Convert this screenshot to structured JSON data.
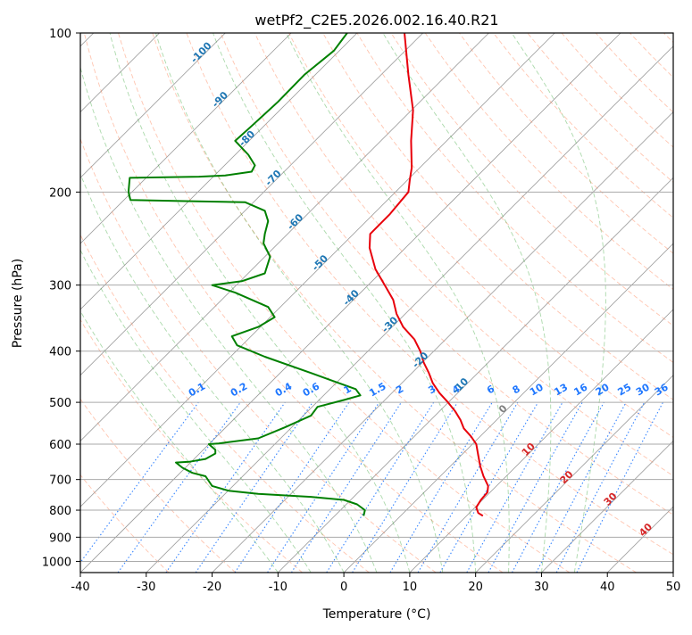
{
  "chart_data": {
    "type": "line",
    "title": "wetPf2_C2E5.2026.002.16.40.R21",
    "xlabel": "Temperature (°C)",
    "ylabel": "Pressure (hPa)",
    "xlim": [
      -40,
      50
    ],
    "ylim": [
      1050,
      100
    ],
    "y_scale": "log",
    "x_ticks": [
      -40,
      -30,
      -20,
      -10,
      0,
      10,
      20,
      30,
      40,
      50
    ],
    "y_ticks": [
      100,
      200,
      300,
      400,
      500,
      600,
      700,
      800,
      900,
      1000
    ],
    "grid": true,
    "legend": "none",
    "colors": {
      "temperature": "#e8000b",
      "dewpoint": "#008000",
      "dry_adiabat": "#ff7f50",
      "moist_adiabat": "#2ca02c",
      "mixing_ratio": "#1f77ff",
      "label_blue": "#1f77b4",
      "label_red": "#d62728"
    },
    "series": [
      {
        "points": [
          [
            9.2,
            100
          ],
          [
            9.8,
            120
          ],
          [
            10.5,
            140
          ],
          [
            10.2,
            160
          ],
          [
            10.3,
            180
          ],
          [
            10.0,
            190
          ],
          [
            9.8,
            200
          ],
          [
            7.0,
            220
          ],
          [
            4.0,
            240
          ],
          [
            3.9,
            255
          ],
          [
            4.8,
            280
          ],
          [
            6.2,
            300
          ],
          [
            7.5,
            320
          ],
          [
            8.0,
            340
          ],
          [
            9.0,
            360
          ],
          [
            10.7,
            380
          ],
          [
            11.6,
            400
          ],
          [
            12.1,
            420
          ],
          [
            12.9,
            440
          ],
          [
            13.5,
            460
          ],
          [
            14.5,
            480
          ],
          [
            15.8,
            500
          ],
          [
            16.9,
            520
          ],
          [
            17.7,
            540
          ],
          [
            18.2,
            560
          ],
          [
            19.3,
            580
          ],
          [
            20.1,
            600
          ],
          [
            20.4,
            630
          ],
          [
            20.7,
            660
          ],
          [
            21.2,
            690
          ],
          [
            21.9,
            720
          ],
          [
            21.8,
            740
          ],
          [
            20.8,
            765
          ],
          [
            20.1,
            790
          ],
          [
            20.4,
            810
          ],
          [
            21.1,
            820
          ]
        ]
      },
      {
        "points": [
          [
            0.5,
            100
          ],
          [
            -1.5,
            108
          ],
          [
            -6.0,
            120
          ],
          [
            -10.0,
            135
          ],
          [
            -14.0,
            150
          ],
          [
            -16.5,
            160
          ],
          [
            -14.5,
            170
          ],
          [
            -13.5,
            178
          ],
          [
            -14.0,
            183
          ],
          [
            -18.0,
            186
          ],
          [
            -22.0,
            187
          ],
          [
            -32.5,
            188
          ],
          [
            -32.7,
            200
          ],
          [
            -32.4,
            207
          ],
          [
            -25.0,
            208
          ],
          [
            -15.0,
            209
          ],
          [
            -12.0,
            217
          ],
          [
            -11.5,
            227
          ],
          [
            -12.0,
            240
          ],
          [
            -12.2,
            250
          ],
          [
            -11.2,
            265
          ],
          [
            -12.0,
            285
          ],
          [
            -15.5,
            295
          ],
          [
            -20.0,
            300
          ],
          [
            -16.5,
            310
          ],
          [
            -11.5,
            330
          ],
          [
            -10.5,
            345
          ],
          [
            -13.0,
            360
          ],
          [
            -17.0,
            375
          ],
          [
            -16.2,
            390
          ],
          [
            -12.0,
            410
          ],
          [
            -5.0,
            440
          ],
          [
            1.8,
            472
          ],
          [
            2.5,
            485
          ],
          [
            0,
            495
          ],
          [
            -4.0,
            510
          ],
          [
            -5.0,
            530
          ],
          [
            -9.0,
            558
          ],
          [
            -13.0,
            585
          ],
          [
            -19.0,
            598
          ],
          [
            -20.5,
            600
          ],
          [
            -19.5,
            615
          ],
          [
            -19.5,
            625
          ],
          [
            -21.0,
            640
          ],
          [
            -23.5,
            648
          ],
          [
            -25.5,
            650
          ],
          [
            -24.5,
            665
          ],
          [
            -23.0,
            680
          ],
          [
            -21.0,
            690
          ],
          [
            -20.5,
            705
          ],
          [
            -20.0,
            720
          ],
          [
            -17.5,
            735
          ],
          [
            -13.0,
            745
          ],
          [
            -5.0,
            755
          ],
          [
            0.0,
            765
          ],
          [
            2.0,
            780
          ],
          [
            3.2,
            800
          ],
          [
            3.0,
            820
          ]
        ]
      }
    ],
    "reference_lines": {
      "dry_adiabat_theta_c": [
        -30,
        -20,
        -10,
        0,
        10,
        20,
        30,
        40,
        50,
        60,
        70,
        80,
        90,
        100,
        110,
        120,
        130,
        140,
        150,
        160,
        170,
        180,
        190,
        200,
        210
      ],
      "moist_adiabat_start_c": [
        -10,
        -5,
        0,
        5,
        10,
        15,
        20,
        25,
        30,
        35
      ],
      "mixing_ratio_g_per_kg": [
        0.1,
        0.2,
        0.4,
        0.6,
        1,
        1.5,
        2,
        3,
        4,
        6,
        8,
        10,
        13,
        16,
        20,
        25,
        30,
        36
      ],
      "isotherm_step_c": 10
    },
    "annotations": {
      "isotherm_labels_blue": [
        "-100",
        "-90",
        "-80",
        "-70",
        "-60",
        "-50",
        "-40",
        "-30",
        "-20",
        "-10"
      ],
      "isotherm_labels_zero": "0",
      "isotherm_labels_red": [
        "10",
        "20",
        "30",
        "40"
      ],
      "mixing_ratio_labels": [
        "0.1",
        "0.2",
        "0.4",
        "0.6",
        "1",
        "1.5",
        "2",
        "3",
        "4",
        "6",
        "8",
        "10",
        "13",
        "16",
        "20",
        "25",
        "30",
        "36"
      ]
    }
  }
}
